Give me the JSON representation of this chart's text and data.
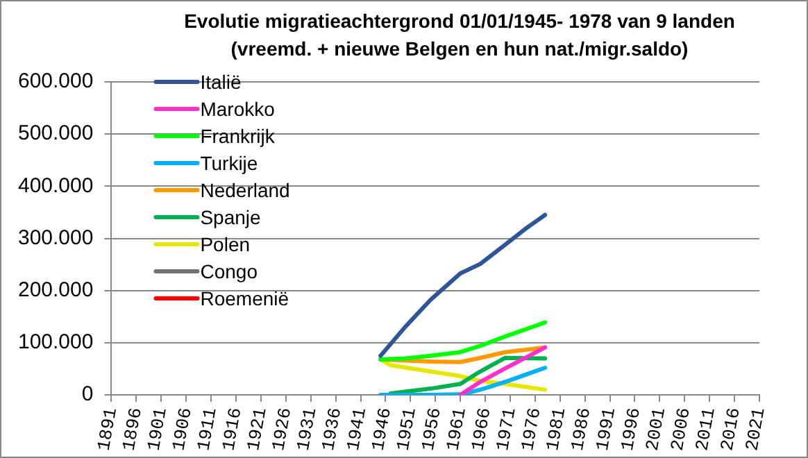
{
  "chart_data": {
    "type": "line",
    "title": "Evolutie migratieachtergrond 01/01/1945- 1978 van 9 landen (vreemd. + nieuwe Belgen en hun nat./migr.saldo)",
    "series": [
      {
        "name": "Italië",
        "color": "#2f5597",
        "x": [
          1945,
          1950,
          1955,
          1961,
          1965,
          1970,
          1974,
          1978
        ],
        "values": [
          75000,
          131000,
          182000,
          233000,
          251000,
          288000,
          318000,
          345000
        ]
      },
      {
        "name": "Marokko",
        "color": "#ff33cc",
        "x": [
          1961,
          1965,
          1970,
          1978
        ],
        "values": [
          0,
          25000,
          51000,
          91000
        ]
      },
      {
        "name": "Frankrijk",
        "color": "#00ff00",
        "x": [
          1945,
          1950,
          1955,
          1961,
          1965,
          1970,
          1978
        ],
        "values": [
          68000,
          70000,
          75000,
          82000,
          94000,
          112000,
          139000
        ]
      },
      {
        "name": "Turkije",
        "color": "#00b0f0",
        "x": [
          1945,
          1955,
          1961,
          1965,
          1970,
          1978
        ],
        "values": [
          0,
          0,
          1000,
          10000,
          25000,
          52000
        ]
      },
      {
        "name": "Nederland",
        "color": "#ff9900",
        "x": [
          1945,
          1955,
          1961,
          1965,
          1970,
          1978
        ],
        "values": [
          68000,
          64000,
          63000,
          71000,
          82000,
          91000
        ]
      },
      {
        "name": "Spanje",
        "color": "#00b050",
        "x": [
          1947,
          1955,
          1961,
          1965,
          1970,
          1978
        ],
        "values": [
          3000,
          12000,
          21000,
          45000,
          71000,
          70000
        ]
      },
      {
        "name": "Polen",
        "color": "#e6e600",
        "x": [
          1945,
          1947,
          1955,
          1961,
          1965,
          1970,
          1978
        ],
        "values": [
          68000,
          57000,
          45000,
          36000,
          27000,
          21000,
          10000
        ]
      },
      {
        "name": "Congo",
        "color": "#767171"
      },
      {
        "name": "Roemenië",
        "color": "#ff0000"
      }
    ],
    "xlim": [
      1891,
      2021
    ],
    "xticks": [
      1891,
      1896,
      1901,
      1906,
      1911,
      1916,
      1921,
      1926,
      1931,
      1936,
      1941,
      1946,
      1951,
      1956,
      1961,
      1966,
      1971,
      1976,
      1981,
      1986,
      1991,
      1996,
      2001,
      2006,
      2011,
      2016,
      2021
    ],
    "ylim": [
      0,
      600000
    ],
    "yticks": [
      0,
      {
        "value": 100000,
        "label": "100.000"
      },
      {
        "value": 200000,
        "label": "200.000"
      },
      {
        "value": 300000,
        "label": "300.000"
      },
      {
        "value": 400000,
        "label": "400.000"
      },
      {
        "value": 500000,
        "label": "500.000"
      },
      {
        "value": 600000,
        "label": "600.000"
      }
    ],
    "grid": "y",
    "legend": "top left",
    "marker": "none",
    "line_style": "solid"
  }
}
